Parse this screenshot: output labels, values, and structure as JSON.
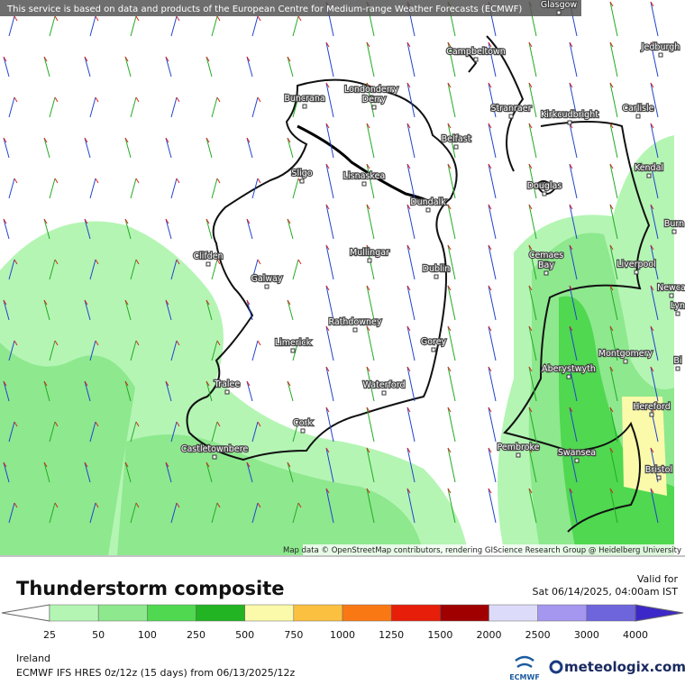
{
  "banner": "This service is based on data and products of the European Centre for Medium-range Weather Forecasts (ECMWF)",
  "places": [
    "Glasgow",
    "Campbeltown",
    "Jedburgh",
    "Buncrana",
    "Londonderry",
    "Derry",
    "Stranraer",
    "Kirkcudbright",
    "Carlisle",
    "Belfast",
    "Sligo",
    "Lisnaskea",
    "Kendal",
    "Douglas",
    "Dundalk",
    "Burn",
    "Clifden",
    "Mullingar",
    "Cemaes",
    "Bay",
    "Liverpool",
    "Dublin",
    "Galway",
    "Newca",
    "Lyn",
    "Rathdowney",
    "Limerick",
    "Gorey",
    "Montgomery",
    "Bi",
    "Aberystwyth",
    "Waterford",
    "Tralee",
    "Hereford",
    "Cork",
    "Castletownbere",
    "Pembroke",
    "Swansea",
    "Bristol"
  ],
  "attribution": "Map data © OpenStreetMap contributors, rendering GIScience Research Group @ Heidelberg University",
  "legend": {
    "title": "Thunderstorm composite",
    "valid_label": "Valid for",
    "valid_time": "Sat 06/14/2025, 04:00am IST",
    "scale": [
      "25",
      "50",
      "100",
      "250",
      "500",
      "750",
      "1000",
      "1250",
      "1500",
      "2000",
      "2500",
      "3000",
      "4000"
    ]
  },
  "footer": {
    "region": "Ireland",
    "model": "ECMWF IFS HRES 0z/12z (15 days)  from  06/13/2025/12z",
    "ecmwf_logo": "ECMWF",
    "brand": "meteologix.com"
  }
}
